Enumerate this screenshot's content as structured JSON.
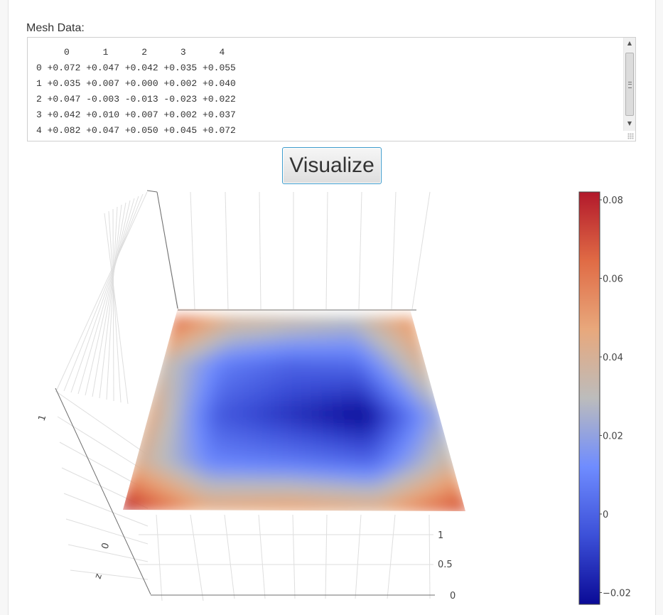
{
  "form": {
    "mesh_label": "Mesh Data:",
    "mesh_text": "     0      1      2      3      4\n0 +0.072 +0.047 +0.042 +0.035 +0.055\n1 +0.035 +0.007 +0.000 +0.002 +0.040\n2 +0.047 -0.003 -0.013 -0.023 +0.022\n3 +0.042 +0.010 +0.007 +0.002 +0.037\n4 +0.082 +0.047 +0.050 +0.045 +0.072",
    "visualize_label": "Visualize"
  },
  "chart_data": {
    "type": "surface",
    "columns": [
      "0",
      "1",
      "2",
      "3",
      "4"
    ],
    "rows": [
      "0",
      "1",
      "2",
      "3",
      "4"
    ],
    "z": [
      [
        0.072,
        0.047,
        0.042,
        0.035,
        0.055
      ],
      [
        0.035,
        0.007,
        0.0,
        0.002,
        0.04
      ],
      [
        0.047,
        -0.003,
        -0.013,
        -0.023,
        0.022
      ],
      [
        0.042,
        0.01,
        0.007,
        0.002,
        0.037
      ],
      [
        0.082,
        0.047,
        0.05,
        0.045,
        0.072
      ]
    ],
    "zlim": [
      -0.023,
      0.082
    ],
    "axis_labels": {
      "y_ticks": [
        "1",
        "0.5",
        "0"
      ],
      "z_title": "z",
      "z_ticks": [
        "1",
        "0"
      ]
    },
    "colorbar": {
      "ticks": [
        "0.08",
        "0.06",
        "0.04",
        "0.02",
        "0",
        "−0.02"
      ],
      "tick_values": [
        0.08,
        0.06,
        0.04,
        0.02,
        0,
        -0.02
      ],
      "colorscale": [
        "#0a0a96",
        "#3c50d8",
        "#6f8cff",
        "#bcbcbc",
        "#e8a87c",
        "#e06b45",
        "#b2182b"
      ]
    },
    "grid": true
  }
}
